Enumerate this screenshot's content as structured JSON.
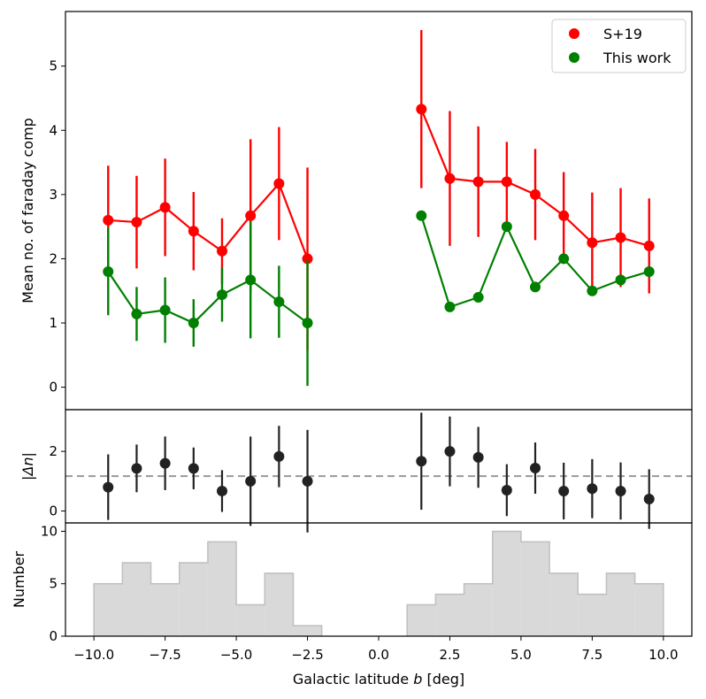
{
  "chart_data": [
    {
      "type": "scatter",
      "panel": "top",
      "ylabel": "Mean no. of faraday comp",
      "ylim": [
        -0.35,
        5.85
      ],
      "yticks": [
        0,
        1,
        2,
        3,
        4,
        5
      ],
      "legend": {
        "location": "top-right"
      },
      "series": [
        {
          "name": "S+19",
          "color": "#ff0000",
          "segments": [
            {
              "x": [
                -9.5,
                -8.5,
                -7.5,
                -6.5,
                -5.5,
                -4.5,
                -3.5,
                -2.5
              ],
              "y": [
                2.6,
                2.57,
                2.8,
                2.43,
                2.12,
                2.67,
                3.17,
                2.0
              ],
              "err": [
                0.85,
                0.72,
                0.76,
                0.61,
                0.51,
                1.19,
                0.88,
                1.42
              ]
            },
            {
              "x": [
                1.5,
                2.5,
                3.5,
                4.5,
                5.5,
                6.5,
                7.5,
                8.5,
                9.5
              ],
              "y": [
                4.33,
                3.25,
                3.2,
                3.2,
                3.0,
                2.67,
                2.25,
                2.33,
                2.2
              ],
              "err": [
                1.23,
                1.05,
                0.86,
                0.62,
                0.71,
                0.68,
                0.78,
                0.77,
                0.74
              ]
            }
          ]
        },
        {
          "name": "This work",
          "color": "#008000",
          "segments": [
            {
              "x": [
                -9.5,
                -8.5,
                -7.5,
                -6.5,
                -5.5,
                -4.5,
                -3.5,
                -2.5
              ],
              "y": [
                1.8,
                1.14,
                1.2,
                1.0,
                1.44,
                1.67,
                1.33,
                1.0
              ],
              "err": [
                0.68,
                0.42,
                0.51,
                0.37,
                0.42,
                0.91,
                0.56,
                0.98
              ]
            },
            {
              "x": [
                1.5,
                2.5,
                3.5,
                4.5,
                5.5,
                6.5,
                7.5,
                8.5,
                9.5
              ],
              "y": [
                2.67,
                1.25,
                1.4,
                2.5,
                1.56,
                2.0,
                1.5,
                1.67,
                1.8
              ]
            }
          ]
        }
      ]
    },
    {
      "type": "scatter",
      "panel": "middle",
      "ylabel": "|Δn|",
      "ylim": [
        -0.4,
        3.4
      ],
      "yticks": [
        0,
        2
      ],
      "reference_line": 1.17,
      "color": "#222222",
      "x": [
        -9.5,
        -8.5,
        -7.5,
        -6.5,
        -5.5,
        -4.5,
        -3.5,
        -2.5,
        1.5,
        2.5,
        3.5,
        4.5,
        5.5,
        6.5,
        7.5,
        8.5,
        9.5
      ],
      "y": [
        0.8,
        1.43,
        1.6,
        1.43,
        0.67,
        1.0,
        1.83,
        1.0,
        1.67,
        2.0,
        1.8,
        0.7,
        1.44,
        0.67,
        0.75,
        0.67,
        0.4
      ],
      "err": [
        1.1,
        0.8,
        0.9,
        0.7,
        0.7,
        1.5,
        1.03,
        1.72,
        1.63,
        1.17,
        1.02,
        0.87,
        0.86,
        0.95,
        0.99,
        0.96,
        1.0
      ]
    },
    {
      "type": "bar",
      "panel": "bottom",
      "style": "step-histogram",
      "xlabel": "Galactic latitude b [deg]",
      "ylabel": "Number",
      "ylim": [
        0,
        10.8
      ],
      "yticks": [
        0,
        5,
        10
      ],
      "bin_edges": [
        -10,
        -9,
        -8,
        -7,
        -6,
        -5,
        -4,
        -3,
        -2,
        -1,
        0,
        1,
        2,
        3,
        4,
        5,
        6,
        7,
        8,
        9,
        10
      ],
      "values": [
        5,
        7,
        5,
        7,
        9,
        3,
        6,
        1,
        0,
        0,
        0,
        3,
        4,
        5,
        10,
        9,
        6,
        4,
        6,
        5
      ],
      "fill": "#d9d9d9",
      "edge": "#bfbfbf"
    }
  ],
  "axes": {
    "xlim": [
      -11.0,
      11.0
    ],
    "xticks": [
      -10,
      -7.5,
      -5,
      -2.5,
      0,
      2.5,
      5,
      7.5,
      10
    ],
    "xtick_labels": [
      "−10.0",
      "−7.5",
      "−5.0",
      "−2.5",
      "0.0",
      "2.5",
      "5.0",
      "7.5",
      "10.0"
    ],
    "xlabel_prefix": "Galactic latitude ",
    "xlabel_var": "b",
    "xlabel_suffix": " [deg]"
  }
}
